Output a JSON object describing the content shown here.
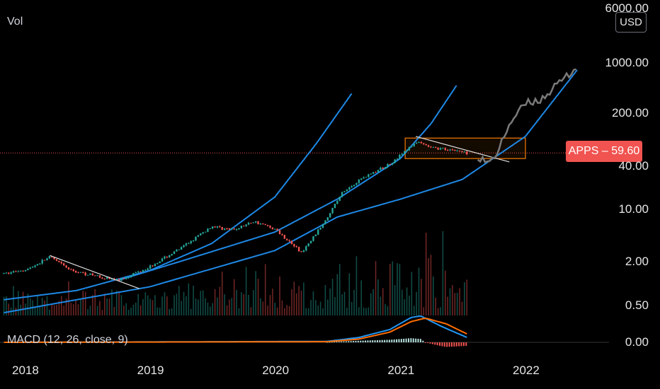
{
  "header": {
    "volume_label": "Vol",
    "currency_badge": "USD"
  },
  "price_badge": {
    "symbol": "APPS",
    "separator": "–",
    "value": "59.60",
    "color": "#f05350"
  },
  "chart_data": [
    {
      "type": "candlestick",
      "title": "",
      "symbol": "APPS",
      "y_scale": "log",
      "ylim": [
        0.3,
        6000
      ],
      "y_ticks": [
        "6000.00",
        "1000.00",
        "200.00",
        "40.00",
        "10.00",
        "2.00",
        "0.50"
      ],
      "x_ticks": [
        "2018",
        "2019",
        "2020",
        "2021",
        "2022"
      ],
      "xlim": [
        "2017-11",
        "2022-07"
      ],
      "last_price": 59.6,
      "price_path": [
        {
          "date": "2017-11-01",
          "price": 1.35
        },
        {
          "date": "2018-01-15",
          "price": 1.6
        },
        {
          "date": "2018-03-15",
          "price": 2.3
        },
        {
          "date": "2018-05-15",
          "price": 1.5
        },
        {
          "date": "2018-07-15",
          "price": 1.3
        },
        {
          "date": "2018-10-01",
          "price": 1.1
        },
        {
          "date": "2019-01-01",
          "price": 1.7
        },
        {
          "date": "2019-04-01",
          "price": 3.0
        },
        {
          "date": "2019-07-01",
          "price": 6.0
        },
        {
          "date": "2019-09-01",
          "price": 5.3
        },
        {
          "date": "2019-11-01",
          "price": 7.0
        },
        {
          "date": "2020-01-01",
          "price": 5.5
        },
        {
          "date": "2020-03-20",
          "price": 2.6
        },
        {
          "date": "2020-05-15",
          "price": 6.0
        },
        {
          "date": "2020-07-15",
          "price": 17.0
        },
        {
          "date": "2020-09-15",
          "price": 28.0
        },
        {
          "date": "2020-11-15",
          "price": 38.0
        },
        {
          "date": "2021-01-01",
          "price": 55.0
        },
        {
          "date": "2021-02-15",
          "price": 84.0
        },
        {
          "date": "2021-04-01",
          "price": 70.0
        },
        {
          "date": "2021-06-01",
          "price": 66.0
        },
        {
          "date": "2021-07-15",
          "price": 59.6
        }
      ],
      "projection_path": [
        {
          "date": "2021-08-15",
          "price": 55.0
        },
        {
          "date": "2021-09-15",
          "price": 42.0
        },
        {
          "date": "2021-10-15",
          "price": 65.0
        },
        {
          "date": "2021-11-15",
          "price": 150.0
        },
        {
          "date": "2022-01-01",
          "price": 280.0
        },
        {
          "date": "2022-02-15",
          "price": 320.0
        },
        {
          "date": "2022-04-15",
          "price": 560.0
        },
        {
          "date": "2022-06-01",
          "price": 900.0
        }
      ],
      "trend_lines": [
        {
          "from": {
            "date": "2018-03-15",
            "price": 2.4
          },
          "to": {
            "date": "2018-12-01",
            "price": 0.85
          },
          "color": "#e0e0e0"
        },
        {
          "from": {
            "date": "2021-02-15",
            "price": 100.0
          },
          "to": {
            "date": "2021-11-15",
            "price": 45.0
          },
          "color": "#e0e0e0"
        }
      ],
      "curves": [
        {
          "color": "#1e88e5",
          "points": [
            {
              "date": "2017-11-01",
              "price": 0.6
            },
            {
              "date": "2018-06-01",
              "price": 0.8
            },
            {
              "date": "2019-01-01",
              "price": 1.5
            },
            {
              "date": "2019-07-01",
              "price": 3.5
            },
            {
              "date": "2020-01-01",
              "price": 15.0
            },
            {
              "date": "2020-05-01",
              "price": 80.0
            },
            {
              "date": "2020-08-15",
              "price": 400.0
            }
          ]
        },
        {
          "color": "#1e88e5",
          "points": [
            {
              "date": "2018-10-01",
              "price": 1.1
            },
            {
              "date": "2019-04-01",
              "price": 2.0
            },
            {
              "date": "2020-01-01",
              "price": 5.0
            },
            {
              "date": "2020-07-01",
              "price": 14.0
            },
            {
              "date": "2021-01-01",
              "price": 50.0
            },
            {
              "date": "2021-04-01",
              "price": 150.0
            },
            {
              "date": "2021-06-15",
              "price": 500.0
            }
          ]
        },
        {
          "color": "#1e88e5",
          "points": [
            {
              "date": "2017-11-01",
              "price": 0.4
            },
            {
              "date": "2019-01-01",
              "price": 0.9
            },
            {
              "date": "2020-01-01",
              "price": 2.8
            },
            {
              "date": "2020-07-01",
              "price": 8.0
            },
            {
              "date": "2021-01-01",
              "price": 14.0
            },
            {
              "date": "2021-07-01",
              "price": 26.0
            },
            {
              "date": "2022-01-01",
              "price": 100.0
            },
            {
              "date": "2022-06-01",
              "price": 800.0
            }
          ]
        }
      ],
      "range_box": {
        "from_date": "2021-01-15",
        "to_date": "2022-01-01",
        "price_top": 95.0,
        "price_bottom": 50.0,
        "color": "#f57c00"
      },
      "last_price_line": {
        "price": 59.6,
        "color": "#f05350"
      },
      "volume_label": "Vol"
    },
    {
      "type": "line",
      "title": "MACD (12, 26, close, 9)",
      "y_ticks": [
        "0.00"
      ],
      "ylim": [
        -6,
        10
      ],
      "series": [
        {
          "name": "MACD",
          "color": "#2196f3",
          "points": [
            {
              "date": "2017-11-01",
              "value": 0.0
            },
            {
              "date": "2020-06-01",
              "value": 0.3
            },
            {
              "date": "2020-09-01",
              "value": 1.5
            },
            {
              "date": "2020-12-01",
              "value": 4.0
            },
            {
              "date": "2021-02-01",
              "value": 7.8
            },
            {
              "date": "2021-03-01",
              "value": 8.3
            },
            {
              "date": "2021-05-01",
              "value": 5.0
            },
            {
              "date": "2021-07-15",
              "value": 1.5
            }
          ]
        },
        {
          "name": "Signal",
          "color": "#ff6d00",
          "points": [
            {
              "date": "2017-11-01",
              "value": 0.0
            },
            {
              "date": "2020-06-01",
              "value": 0.2
            },
            {
              "date": "2020-09-01",
              "value": 1.0
            },
            {
              "date": "2020-12-01",
              "value": 3.2
            },
            {
              "date": "2021-02-01",
              "value": 6.5
            },
            {
              "date": "2021-03-15",
              "value": 7.6
            },
            {
              "date": "2021-05-15",
              "value": 5.8
            },
            {
              "date": "2021-07-15",
              "value": 2.6
            }
          ]
        }
      ]
    }
  ]
}
